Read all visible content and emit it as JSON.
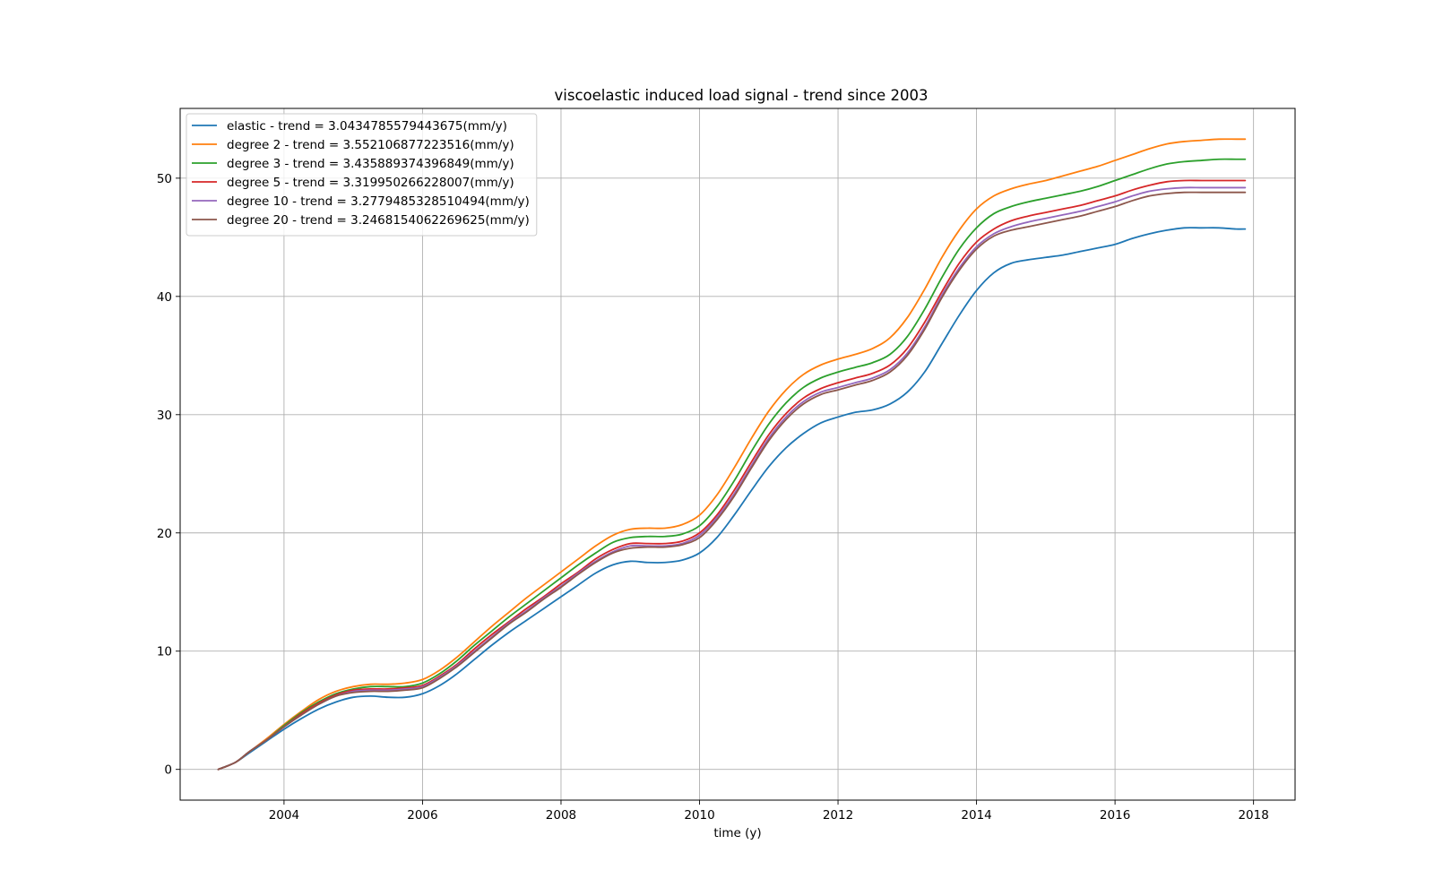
{
  "chart_data": {
    "type": "line",
    "title": "viscoelastic induced load signal - trend since 2003",
    "xlabel": "time (y)",
    "ylabel": "",
    "xlim": [
      2002.5,
      2018.6
    ],
    "ylim": [
      -2.6,
      55.9
    ],
    "xticks": [
      2004,
      2006,
      2008,
      2010,
      2012,
      2014,
      2016,
      2018
    ],
    "yticks": [
      0,
      10,
      20,
      30,
      40,
      50
    ],
    "grid": true,
    "legend_position": "upper-left",
    "x": [
      2003.05,
      2003.3,
      2003.5,
      2003.75,
      2004.0,
      2004.25,
      2004.5,
      2004.75,
      2005.0,
      2005.25,
      2005.5,
      2005.75,
      2006.0,
      2006.25,
      2006.5,
      2006.75,
      2007.0,
      2007.25,
      2007.5,
      2007.75,
      2008.0,
      2008.25,
      2008.5,
      2008.75,
      2009.0,
      2009.25,
      2009.5,
      2009.75,
      2010.0,
      2010.25,
      2010.5,
      2010.75,
      2011.0,
      2011.25,
      2011.5,
      2011.75,
      2012.0,
      2012.25,
      2012.5,
      2012.75,
      2013.0,
      2013.25,
      2013.5,
      2013.75,
      2014.0,
      2014.25,
      2014.5,
      2014.75,
      2015.0,
      2015.25,
      2015.5,
      2015.75,
      2016.0,
      2016.25,
      2016.5,
      2016.75,
      2017.0,
      2017.25,
      2017.5,
      2017.75,
      2017.88
    ],
    "series": [
      {
        "name": "elastic - trend = 3.0434785579443675(mm/y)",
        "color": "#1f77b4",
        "values": [
          0.0,
          0.6,
          1.4,
          2.4,
          3.4,
          4.3,
          5.1,
          5.7,
          6.1,
          6.2,
          6.1,
          6.1,
          6.4,
          7.1,
          8.1,
          9.3,
          10.5,
          11.6,
          12.6,
          13.6,
          14.6,
          15.6,
          16.6,
          17.3,
          17.6,
          17.5,
          17.5,
          17.7,
          18.3,
          19.6,
          21.5,
          23.6,
          25.6,
          27.2,
          28.4,
          29.3,
          29.8,
          30.2,
          30.4,
          30.9,
          31.9,
          33.6,
          36.0,
          38.4,
          40.5,
          42.0,
          42.8,
          43.1,
          43.3,
          43.5,
          43.8,
          44.1,
          44.4,
          44.9,
          45.3,
          45.6,
          45.8,
          45.8,
          45.8,
          45.7,
          45.7
        ]
      },
      {
        "name": "degree 2 - trend = 3.552106877223516(mm/y)",
        "color": "#ff7f0e",
        "values": [
          0.0,
          0.6,
          1.5,
          2.6,
          3.8,
          4.9,
          5.9,
          6.6,
          7.0,
          7.2,
          7.2,
          7.3,
          7.6,
          8.4,
          9.5,
          10.8,
          12.1,
          13.3,
          14.5,
          15.6,
          16.7,
          17.8,
          18.9,
          19.8,
          20.3,
          20.4,
          20.4,
          20.7,
          21.5,
          23.2,
          25.5,
          28.0,
          30.3,
          32.1,
          33.4,
          34.2,
          34.7,
          35.1,
          35.6,
          36.5,
          38.2,
          40.6,
          43.3,
          45.6,
          47.4,
          48.5,
          49.1,
          49.5,
          49.8,
          50.2,
          50.6,
          51.0,
          51.5,
          52.0,
          52.5,
          52.9,
          53.1,
          53.2,
          53.3,
          53.3,
          53.3
        ]
      },
      {
        "name": "degree 3 - trend = 3.435889374396849(mm/y)",
        "color": "#2ca02c",
        "values": [
          0.0,
          0.6,
          1.5,
          2.5,
          3.7,
          4.8,
          5.7,
          6.4,
          6.8,
          7.0,
          7.0,
          7.0,
          7.3,
          8.1,
          9.2,
          10.5,
          11.7,
          12.9,
          14.0,
          15.1,
          16.2,
          17.3,
          18.3,
          19.2,
          19.6,
          19.7,
          19.7,
          19.9,
          20.6,
          22.2,
          24.4,
          26.9,
          29.2,
          31.0,
          32.3,
          33.1,
          33.6,
          34.0,
          34.4,
          35.1,
          36.6,
          38.9,
          41.6,
          44.0,
          45.8,
          47.0,
          47.6,
          48.0,
          48.3,
          48.6,
          48.9,
          49.3,
          49.8,
          50.3,
          50.8,
          51.2,
          51.4,
          51.5,
          51.6,
          51.6,
          51.6
        ]
      },
      {
        "name": "degree 5 - trend = 3.319950266228007(mm/y)",
        "color": "#d62728",
        "values": [
          0.0,
          0.6,
          1.5,
          2.5,
          3.6,
          4.7,
          5.6,
          6.3,
          6.7,
          6.8,
          6.8,
          6.9,
          7.1,
          7.9,
          8.9,
          10.2,
          11.4,
          12.5,
          13.6,
          14.6,
          15.7,
          16.7,
          17.8,
          18.6,
          19.1,
          19.1,
          19.1,
          19.3,
          20.0,
          21.5,
          23.6,
          26.0,
          28.3,
          30.1,
          31.4,
          32.2,
          32.7,
          33.1,
          33.5,
          34.2,
          35.6,
          37.8,
          40.4,
          42.8,
          44.6,
          45.7,
          46.4,
          46.8,
          47.1,
          47.4,
          47.7,
          48.1,
          48.5,
          49.0,
          49.4,
          49.7,
          49.8,
          49.8,
          49.8,
          49.8,
          49.8
        ]
      },
      {
        "name": "degree 10 - trend = 3.2779485328510494(mm/y)",
        "color": "#9467bd",
        "values": [
          0.0,
          0.6,
          1.5,
          2.5,
          3.6,
          4.6,
          5.5,
          6.2,
          6.6,
          6.7,
          6.7,
          6.8,
          7.0,
          7.8,
          8.8,
          10.0,
          11.2,
          12.4,
          13.4,
          14.5,
          15.5,
          16.6,
          17.6,
          18.4,
          18.9,
          18.9,
          18.9,
          19.1,
          19.8,
          21.3,
          23.3,
          25.7,
          28.0,
          29.8,
          31.1,
          31.9,
          32.3,
          32.7,
          33.1,
          33.8,
          35.2,
          37.4,
          40.1,
          42.4,
          44.2,
          45.3,
          45.9,
          46.3,
          46.6,
          46.9,
          47.2,
          47.6,
          48.0,
          48.5,
          48.9,
          49.1,
          49.2,
          49.2,
          49.2,
          49.2,
          49.2
        ]
      },
      {
        "name": "degree 20 - trend = 3.2468154062269625(mm/y)",
        "color": "#8c564b",
        "values": [
          0.0,
          0.6,
          1.5,
          2.5,
          3.6,
          4.6,
          5.5,
          6.2,
          6.5,
          6.6,
          6.6,
          6.7,
          6.9,
          7.7,
          8.7,
          9.9,
          11.1,
          12.3,
          13.3,
          14.4,
          15.4,
          16.5,
          17.5,
          18.3,
          18.7,
          18.8,
          18.8,
          19.0,
          19.6,
          21.1,
          23.1,
          25.5,
          27.8,
          29.6,
          30.9,
          31.7,
          32.1,
          32.5,
          32.9,
          33.6,
          35.0,
          37.2,
          39.9,
          42.2,
          44.0,
          45.1,
          45.6,
          45.9,
          46.2,
          46.5,
          46.8,
          47.2,
          47.6,
          48.1,
          48.5,
          48.7,
          48.8,
          48.8,
          48.8,
          48.8,
          48.8
        ]
      }
    ]
  }
}
